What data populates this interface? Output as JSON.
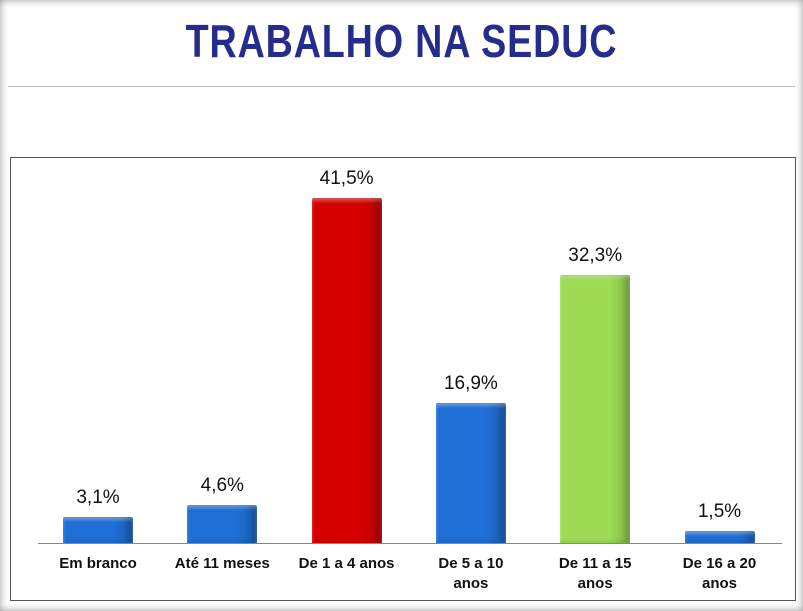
{
  "chart_data": {
    "type": "bar",
    "title": "TRABALHO NA SEDUC",
    "categories": [
      "Em branco",
      "Até 11 meses",
      "De 1 a 4 anos",
      "De 5 a 10\nanos",
      "De 11 a 15\nanos",
      "De 16 a 20\nanos"
    ],
    "values": [
      3.1,
      4.6,
      41.5,
      16.9,
      32.3,
      1.5
    ],
    "value_labels": [
      "3,1%",
      "4,6%",
      "41,5%",
      "16,9%",
      "32,3%",
      "1,5%"
    ],
    "colors": [
      "#1f6fd6",
      "#1f6fd6",
      "#d60000",
      "#1f6fd6",
      "#9ddb55",
      "#1f6fd6"
    ]
  }
}
